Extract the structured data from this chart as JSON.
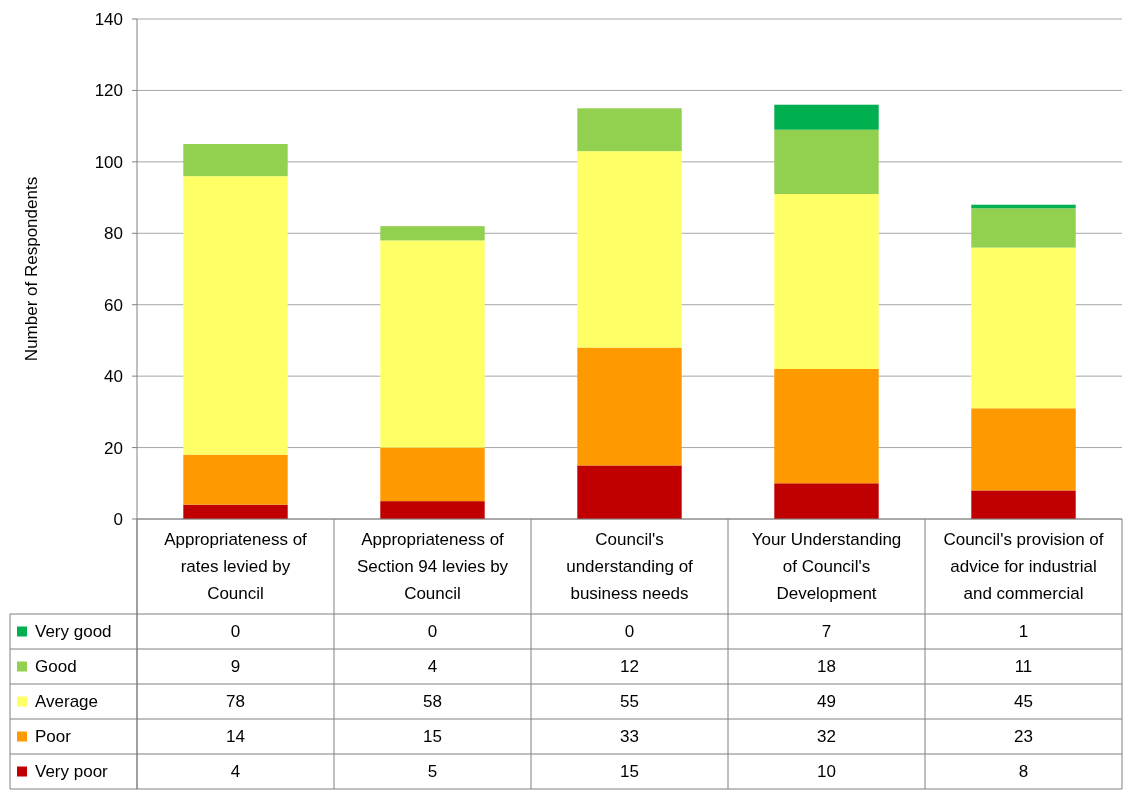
{
  "chart_data": {
    "type": "bar",
    "stacked": true,
    "ylabel": "Number of Respondents",
    "categories": [
      "Appropriateness of\nrates levied by\nCouncil",
      "Appropriateness of\nSection 94 levies by\nCouncil",
      "Council's\nunderstanding of\nbusiness needs",
      "Your Understanding\nof Council's\nDevelopment",
      "Council's provision of\nadvice for industrial\nand commercial"
    ],
    "series": [
      {
        "name": "Very poor",
        "color": "#c00000",
        "values": [
          4,
          5,
          15,
          10,
          8
        ]
      },
      {
        "name": "Poor",
        "color": "#ff9900",
        "values": [
          14,
          15,
          33,
          32,
          23
        ]
      },
      {
        "name": "Average",
        "color": "#ffff66",
        "values": [
          78,
          58,
          55,
          49,
          45
        ]
      },
      {
        "name": "Good",
        "color": "#92d050",
        "values": [
          9,
          4,
          12,
          18,
          11
        ]
      },
      {
        "name": "Very good",
        "color": "#00b050",
        "values": [
          0,
          0,
          0,
          7,
          1
        ]
      }
    ],
    "ylim": [
      0,
      140
    ],
    "yticks": [
      0,
      20,
      40,
      60,
      80,
      100,
      120,
      140
    ],
    "grid": "y",
    "legend": "bottom",
    "data_labels": true
  }
}
